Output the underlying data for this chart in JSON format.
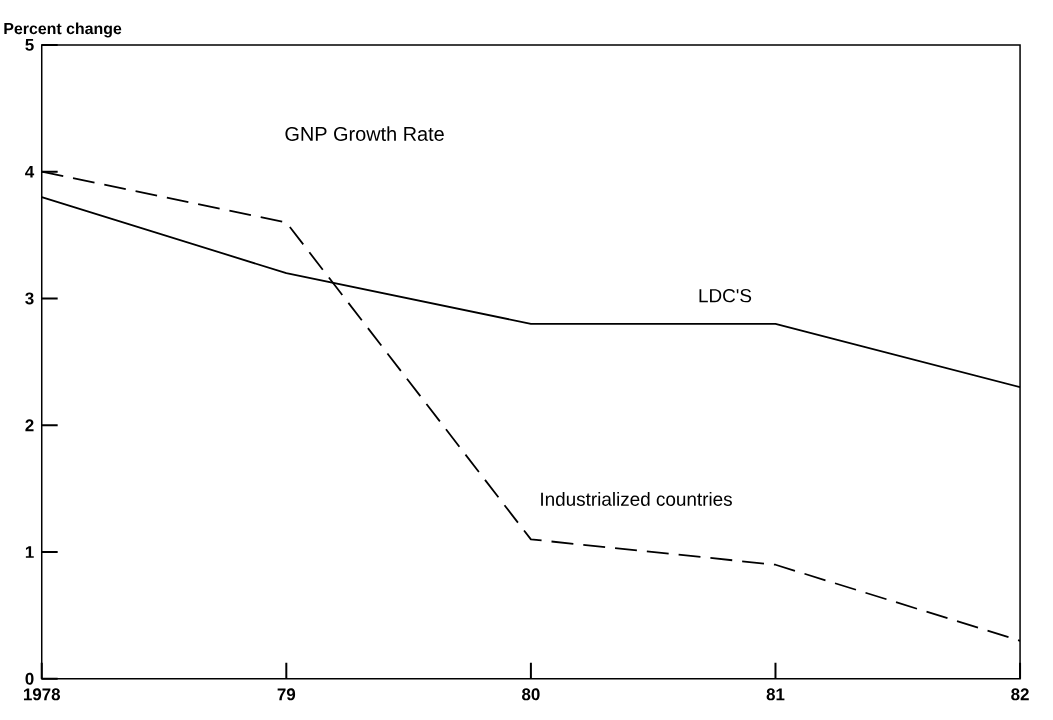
{
  "chart_data": {
    "type": "line",
    "title": "GNP Growth Rate",
    "ylabel": "Percent change",
    "x": [
      1978,
      1979,
      1980,
      1981,
      1982
    ],
    "series": [
      {
        "name": "LDC'S",
        "color": "#000000",
        "line_style": "solid",
        "values": [
          3.8,
          3.2,
          2.8,
          2.8,
          2.3
        ]
      },
      {
        "name": "Industrialized countries",
        "color": "#000000",
        "line_style": "dashed",
        "values": [
          4.0,
          3.6,
          1.1,
          0.9,
          0.3
        ]
      }
    ],
    "xlim": [
      1978,
      1982
    ],
    "xticks": [
      {
        "value": 1978,
        "label": "1978"
      },
      {
        "value": 1979,
        "label": "79"
      },
      {
        "value": 1980,
        "label": "80"
      },
      {
        "value": 1981,
        "label": "81"
      },
      {
        "value": 1982,
        "label": "82"
      }
    ],
    "ylim": [
      0,
      5
    ],
    "yticks": [
      0,
      1,
      2,
      3,
      4,
      5
    ],
    "grid": false,
    "marker": "none"
  }
}
